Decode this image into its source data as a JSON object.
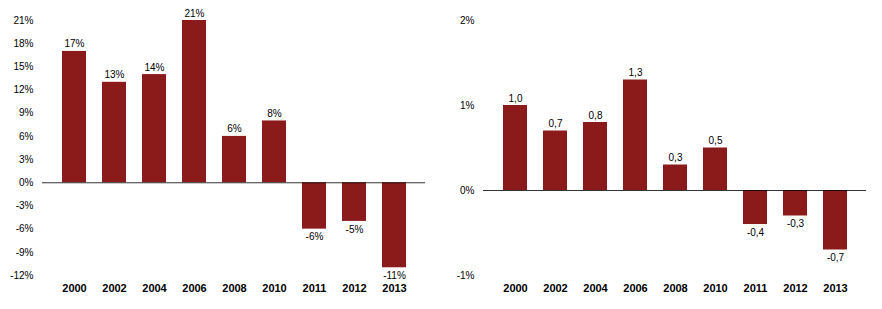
{
  "chart_data": [
    {
      "type": "bar",
      "categories": [
        "2000",
        "2002",
        "2004",
        "2006",
        "2008",
        "2010",
        "2011",
        "2012",
        "2013"
      ],
      "values": [
        17,
        13,
        14,
        21,
        6,
        8,
        -6,
        -5,
        -11
      ],
      "value_labels": [
        "17%",
        "13%",
        "14%",
        "21%",
        "6%",
        "8%",
        "-6%",
        "-5%",
        "-11%"
      ],
      "color": "#8B1A1A",
      "ylim": [
        -12,
        21
      ],
      "yticks": [
        {
          "value": -12,
          "label": "-12%"
        },
        {
          "value": -9,
          "label": "-9%"
        },
        {
          "value": -6,
          "label": "-6%"
        },
        {
          "value": -3,
          "label": "-3%"
        },
        {
          "value": 0,
          "label": "0%"
        },
        {
          "value": 3,
          "label": "3%"
        },
        {
          "value": 6,
          "label": "6%"
        },
        {
          "value": 9,
          "label": "9%"
        },
        {
          "value": 12,
          "label": "12%"
        },
        {
          "value": 15,
          "label": "15%"
        },
        {
          "value": 18,
          "label": "18%"
        },
        {
          "value": 21,
          "label": "21%"
        }
      ],
      "grid": false,
      "data_labels": true
    },
    {
      "type": "bar",
      "categories": [
        "2000",
        "2002",
        "2004",
        "2006",
        "2008",
        "2010",
        "2011",
        "2012",
        "2013"
      ],
      "values": [
        1.0,
        0.7,
        0.8,
        1.3,
        0.3,
        0.5,
        -0.4,
        -0.3,
        -0.7
      ],
      "value_labels": [
        "1,0",
        "0,7",
        "0,8",
        "1,3",
        "0,3",
        "0,5",
        "-0,4",
        "-0,3",
        "-0,7"
      ],
      "color": "#8B1A1A",
      "ylim": [
        -1.0,
        2.0
      ],
      "yticks": [
        {
          "value": -1.0,
          "label": "-1%"
        },
        {
          "value": 0.0,
          "label": "0%"
        },
        {
          "value": 1.0,
          "label": "1%"
        },
        {
          "value": 2.0,
          "label": "2%"
        }
      ],
      "grid": false,
      "data_labels": true
    }
  ]
}
